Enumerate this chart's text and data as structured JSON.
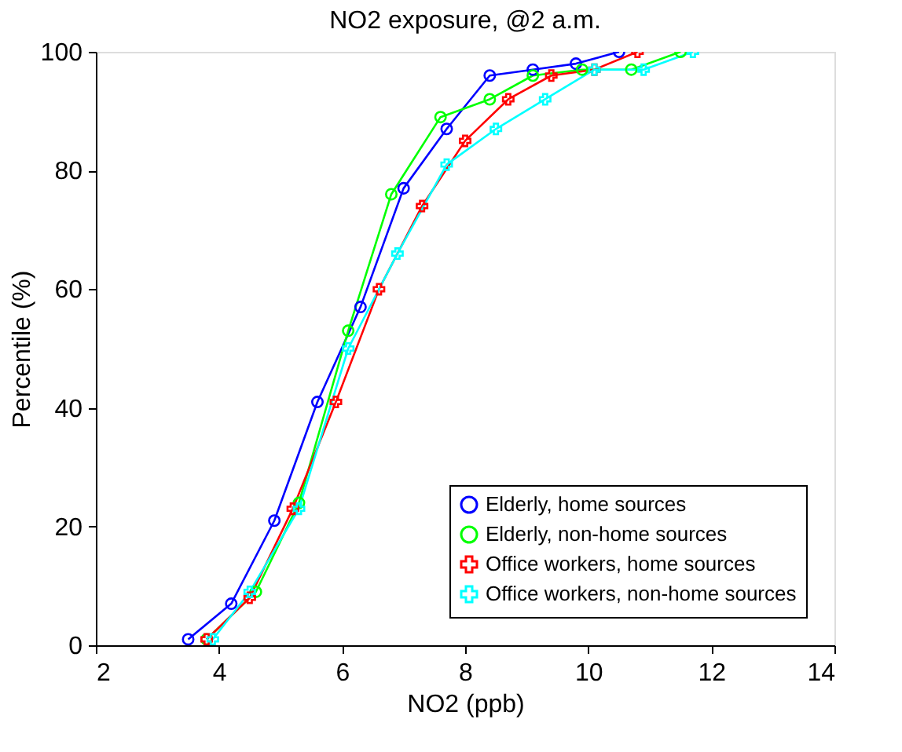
{
  "chart_data": {
    "type": "line",
    "title": "NO2 exposure, @2 a.m.",
    "xlabel": "NO2 (ppb)",
    "ylabel": "Percentile (%)",
    "xlim": [
      2,
      14
    ],
    "xticks": [
      2,
      4,
      6,
      8,
      10,
      12,
      14
    ],
    "ylim": [
      0,
      100
    ],
    "yticks": [
      0,
      20,
      40,
      60,
      80,
      100
    ],
    "grid": false,
    "legend": "bottom right",
    "line_style": "solid",
    "series": [
      {
        "name": "Elderly, home sources",
        "color": "#0000ff",
        "marker": "circle",
        "x": [
          3.5,
          4.2,
          4.9,
          5.6,
          6.3,
          7.0,
          7.7,
          8.4,
          9.1,
          9.8,
          10.5
        ],
        "values": [
          1,
          7,
          21,
          41,
          57,
          77,
          87,
          96,
          97,
          98,
          100
        ]
      },
      {
        "name": "Elderly, non-home sources",
        "color": "#00ff00",
        "marker": "circle",
        "x": [
          3.8,
          4.6,
          5.3,
          6.1,
          6.8,
          7.6,
          8.4,
          9.1,
          9.9,
          10.7,
          11.5
        ],
        "values": [
          1,
          9,
          24,
          53,
          76,
          89,
          92,
          96,
          97,
          97,
          100
        ]
      },
      {
        "name": "Office workers, home sources",
        "color": "#ff0000",
        "marker": "cross",
        "x": [
          3.8,
          4.5,
          5.2,
          5.9,
          6.6,
          7.3,
          8.0,
          8.7,
          9.4,
          10.1,
          10.8
        ],
        "values": [
          1,
          8,
          23,
          41,
          60,
          74,
          85,
          92,
          96,
          97,
          100
        ]
      },
      {
        "name": "Office workers, non-home sources",
        "color": "#00ffff",
        "marker": "cross",
        "x": [
          3.9,
          4.5,
          5.3,
          6.1,
          6.9,
          7.7,
          8.5,
          9.3,
          10.1,
          10.9,
          11.7
        ],
        "values": [
          1,
          9,
          23,
          50,
          66,
          81,
          87,
          92,
          97,
          97,
          100
        ]
      }
    ]
  }
}
